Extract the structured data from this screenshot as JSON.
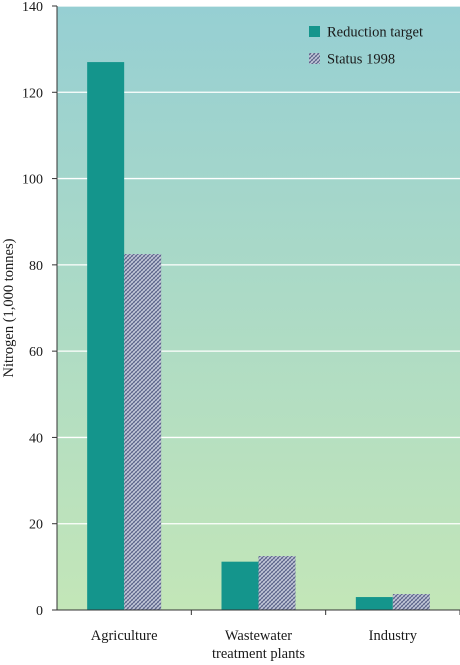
{
  "chart_data": {
    "type": "bar",
    "ylabel": "Nitrogen (1,000 tonnes)",
    "xlabel": "",
    "ylim": [
      0,
      140
    ],
    "yticks": [
      0,
      20,
      40,
      60,
      80,
      100,
      120,
      140
    ],
    "grid": true,
    "legend_position": "top-right",
    "categories": [
      [
        "Agriculture"
      ],
      [
        "Wastewater",
        "treatment plants"
      ],
      [
        "Industry"
      ]
    ],
    "series": [
      {
        "name": "Reduction target",
        "values": [
          127,
          11.2,
          3
        ],
        "color": "#14958c",
        "pattern": "solid"
      },
      {
        "name": "Status 1998",
        "values": [
          82.5,
          12.5,
          3.7
        ],
        "color": "#7f86a6",
        "pattern": "crosshatch"
      }
    ],
    "colors": {
      "background_top": "#96cfd3",
      "background_bottom": "#c3e6b8",
      "grid": "#ffffff",
      "axis": "#333333"
    }
  }
}
